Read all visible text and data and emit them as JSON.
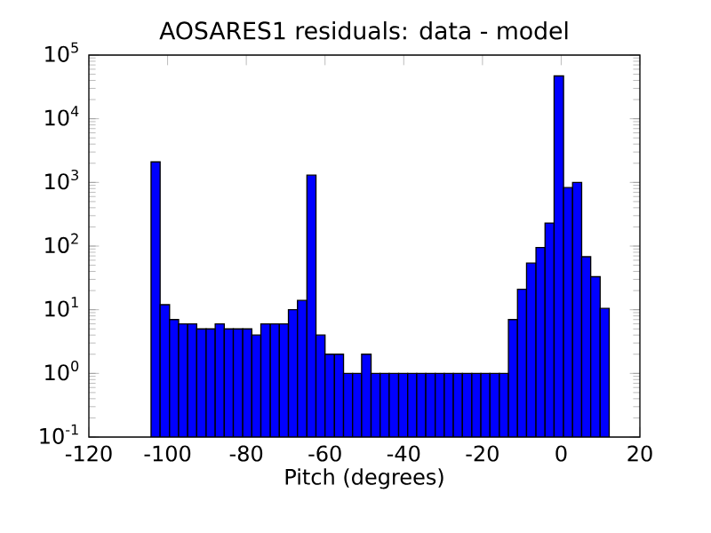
{
  "chart_data": {
    "type": "histogram",
    "title": "AOSARES1 residuals: data - model",
    "xlabel": "Pitch (degrees)",
    "bins": [
      -104.2,
      -101.9,
      -99.5,
      -97.2,
      -94.9,
      -92.6,
      -90.2,
      -87.9,
      -85.6,
      -83.3,
      -80.9,
      -78.6,
      -76.3,
      -73.9,
      -71.6,
      -69.3,
      -67.0,
      -64.6,
      -62.3,
      -60.0,
      -57.6,
      -55.3,
      -53.0,
      -50.7,
      -48.3,
      -46.0,
      -43.7,
      -41.3,
      -39.0,
      -36.7,
      -34.4,
      -32.0,
      -29.7,
      -27.4,
      -25.1,
      -22.7,
      -20.4,
      -18.1,
      -15.7,
      -13.4,
      -11.1,
      -8.8,
      -6.4,
      -4.1,
      -1.8,
      0.6,
      2.9,
      5.2,
      7.5,
      9.9,
      12.2
    ],
    "values": [
      2100,
      12,
      7,
      6,
      6,
      5,
      5,
      6,
      5,
      5,
      5,
      4,
      6,
      6,
      6,
      10,
      14,
      1300,
      4,
      2,
      2,
      1,
      1,
      2,
      1,
      1,
      1,
      1,
      1,
      1,
      1,
      1,
      1,
      1,
      1,
      1,
      1,
      1,
      1,
      7,
      21,
      54,
      95,
      230,
      47000,
      830,
      1000,
      68,
      33,
      10.5
    ],
    "color": "#0000ff",
    "log": true,
    "xlim": [
      -120,
      20
    ],
    "xticks": [
      -120,
      -100,
      -80,
      -60,
      -40,
      -20,
      0,
      20
    ],
    "ylim": [
      0.1,
      100000
    ],
    "yticks": [
      {
        "value": 0.1,
        "label": "10$^{-1}$"
      },
      {
        "value": 1,
        "label": "10$^{0}$"
      },
      {
        "value": 10,
        "label": "10$^{1}$"
      },
      {
        "value": 100,
        "label": "10$^{2}$"
      },
      {
        "value": 1000,
        "label": "10$^{3}$"
      },
      {
        "value": 10000,
        "label": "10$^{4}$"
      },
      {
        "value": 100000,
        "label": "10$^{5}$"
      }
    ]
  }
}
